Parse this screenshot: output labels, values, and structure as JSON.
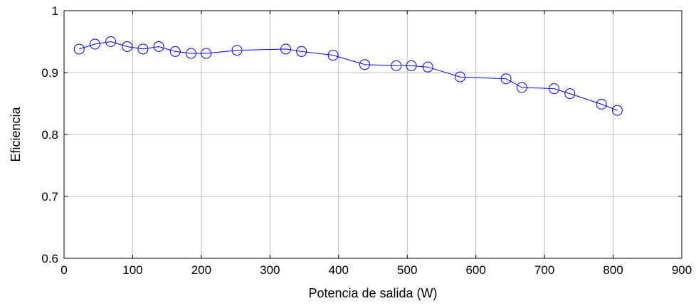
{
  "chart_data": {
    "type": "line",
    "title": "",
    "xlabel": "Potencia de salida (W)",
    "ylabel": "Eficiencia",
    "xlim": [
      0,
      900
    ],
    "ylim": [
      0.6,
      1.0
    ],
    "xticks": [
      0,
      100,
      200,
      300,
      400,
      500,
      600,
      700,
      800,
      900
    ],
    "yticks": [
      0.6,
      0.7,
      0.8,
      0.9,
      1.0
    ],
    "xtick_labels": [
      "0",
      "100",
      "200",
      "300",
      "400",
      "500",
      "600",
      "700",
      "800",
      "900"
    ],
    "ytick_labels": [
      "0.6",
      "0.7",
      "0.8",
      "0.9",
      "1"
    ],
    "grid": true,
    "marker": "circle",
    "line_color": "#0000ff",
    "series": [
      {
        "x": [
          22,
          45,
          68,
          92,
          115,
          138,
          162,
          185,
          207,
          252,
          323,
          346,
          392,
          438,
          484,
          506,
          530,
          577,
          644,
          667,
          714,
          737,
          783,
          806
        ],
        "y": [
          0.938,
          0.946,
          0.95,
          0.942,
          0.938,
          0.942,
          0.934,
          0.931,
          0.931,
          0.936,
          0.938,
          0.934,
          0.928,
          0.913,
          0.911,
          0.911,
          0.909,
          0.893,
          0.89,
          0.876,
          0.874,
          0.866,
          0.849,
          0.839
        ]
      }
    ]
  }
}
